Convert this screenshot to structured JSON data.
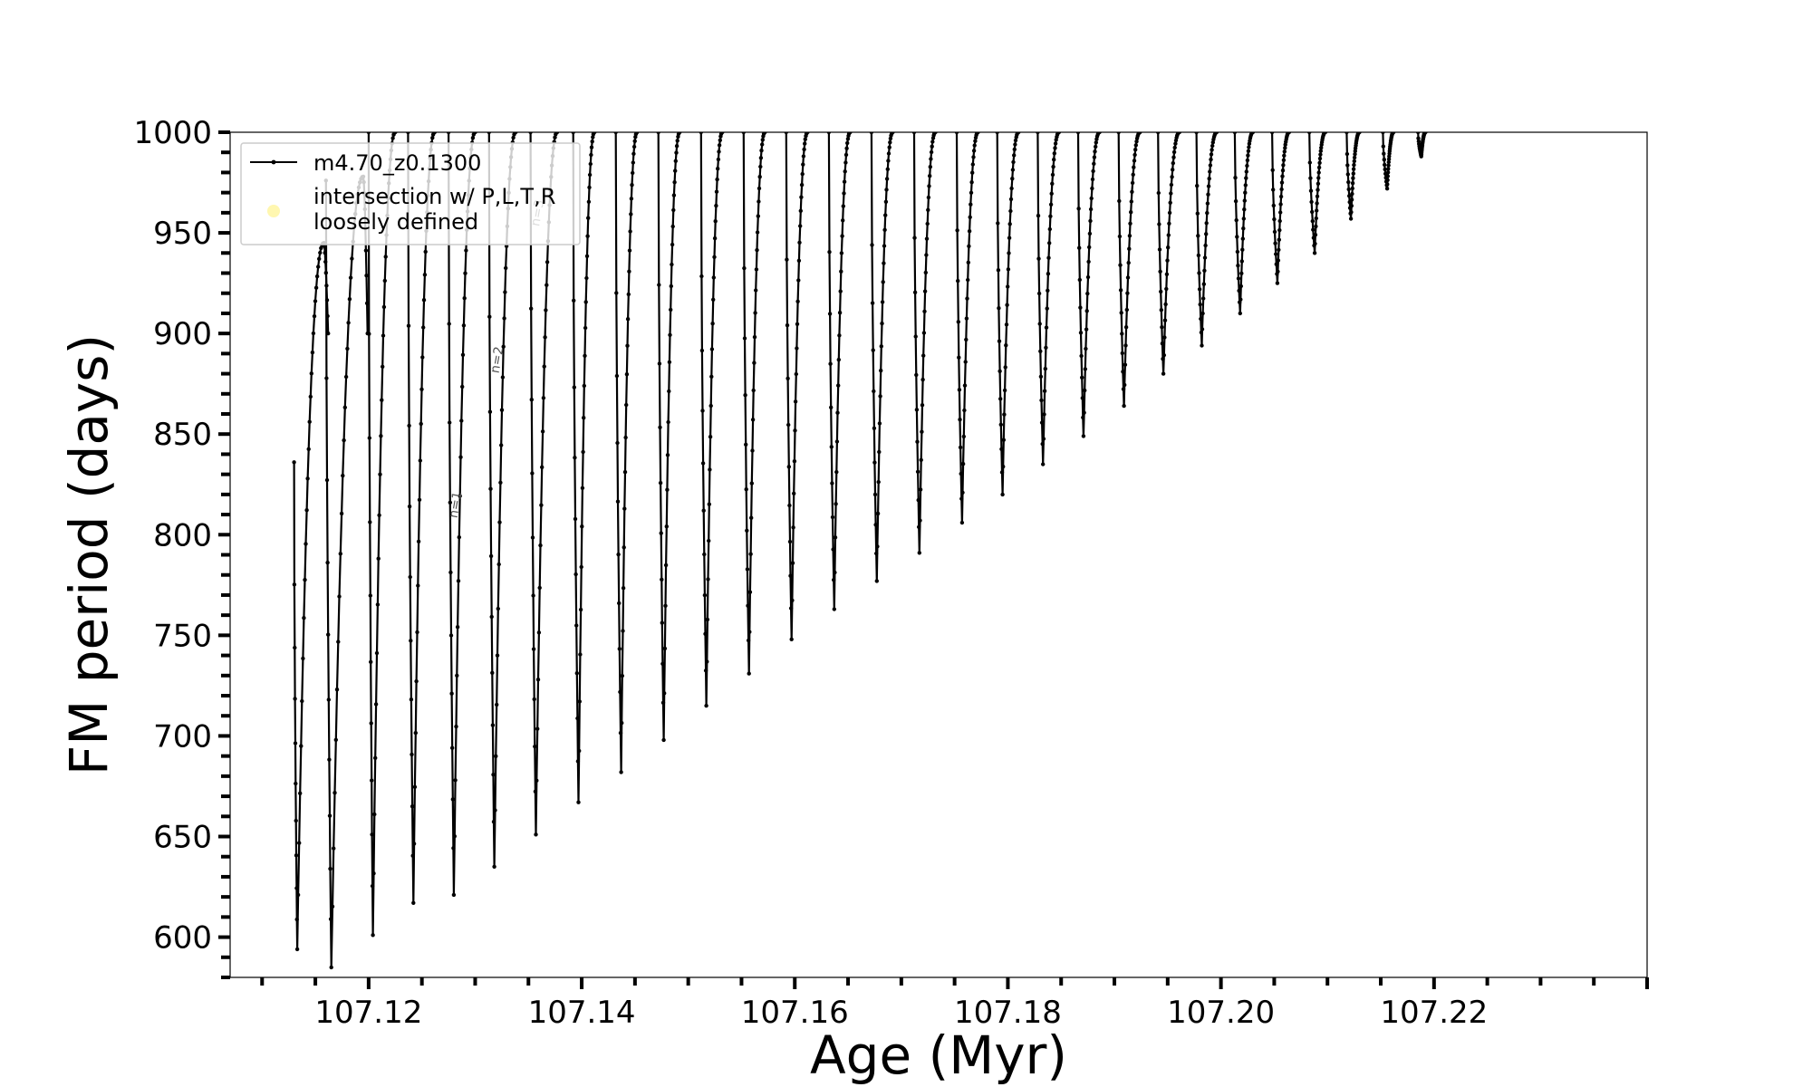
{
  "chart_data": {
    "type": "line",
    "title": "",
    "xlabel": "Age (Myr)",
    "ylabel": "FM period (days)",
    "xlim": [
      107.107,
      107.24
    ],
    "ylim": [
      580,
      1000
    ],
    "x_ticks": [
      107.12,
      107.14,
      107.16,
      107.18,
      107.2,
      107.22
    ],
    "x_tick_labels": [
      "107.12",
      "107.14",
      "107.16",
      "107.18",
      "107.20",
      "107.22"
    ],
    "y_ticks": [
      600,
      650,
      700,
      750,
      800,
      850,
      900,
      950,
      1000
    ],
    "y_tick_labels": [
      "600",
      "650",
      "700",
      "750",
      "800",
      "850",
      "900",
      "950",
      "1000"
    ],
    "grid": false,
    "legend_position": "top-left",
    "series": [
      {
        "name": "m4.70_z0.1300",
        "color": "#000000",
        "marker": "small-dot",
        "description_of_shape": "repeated thermal-pulse loops: period drops sharply to a minimum then rises back above 1000 days",
        "loops": [
          {
            "x_start": 107.113,
            "x_min": 107.1133,
            "y_min": 594,
            "x_top": 107.1158,
            "y_top": 945,
            "y_start": 836
          },
          {
            "x_start": 107.116,
            "x_min": 107.1165,
            "y_min": 585,
            "x_top": 107.1195,
            "y_top": 978,
            "y_start": 976
          },
          {
            "x_start": 107.12,
            "x_min": 107.1204,
            "y_min": 601,
            "x_top": 107.1225,
            "y_top": 1000,
            "y_start": 1000
          },
          {
            "x_start": 107.1237,
            "x_min": 107.1242,
            "y_min": 617,
            "x_top": 107.1262,
            "y_top": 1000,
            "y_start": 1000
          },
          {
            "x_start": 107.1275,
            "x_min": 107.128,
            "y_min": 621,
            "x_top": 107.13,
            "y_top": 1000,
            "y_start": 1000
          },
          {
            "x_start": 107.1313,
            "x_min": 107.1318,
            "y_min": 635,
            "x_top": 107.1338,
            "y_top": 1000,
            "y_start": 1000
          },
          {
            "x_start": 107.1352,
            "x_min": 107.1357,
            "y_min": 651,
            "x_top": 107.1377,
            "y_top": 1000,
            "y_start": 1000
          },
          {
            "x_start": 107.1392,
            "x_min": 107.1397,
            "y_min": 667,
            "x_top": 107.1412,
            "y_top": 1000,
            "y_start": 1000
          },
          {
            "x_start": 107.1432,
            "x_min": 107.1437,
            "y_min": 682,
            "x_top": 107.1452,
            "y_top": 1000,
            "y_start": 1000
          },
          {
            "x_start": 107.1472,
            "x_min": 107.1477,
            "y_min": 698,
            "x_top": 107.1492,
            "y_top": 1000,
            "y_start": 1000
          },
          {
            "x_start": 107.1512,
            "x_min": 107.1517,
            "y_min": 715,
            "x_top": 107.1532,
            "y_top": 1000,
            "y_start": 1000
          },
          {
            "x_start": 107.1552,
            "x_min": 107.1557,
            "y_min": 731,
            "x_top": 107.1572,
            "y_top": 1000,
            "y_start": 1000
          },
          {
            "x_start": 107.1592,
            "x_min": 107.1597,
            "y_min": 748,
            "x_top": 107.1612,
            "y_top": 1000,
            "y_start": 1000
          },
          {
            "x_start": 107.1632,
            "x_min": 107.1637,
            "y_min": 763,
            "x_top": 107.1652,
            "y_top": 1000,
            "y_start": 1000
          },
          {
            "x_start": 107.1672,
            "x_min": 107.1677,
            "y_min": 777,
            "x_top": 107.1692,
            "y_top": 1000,
            "y_start": 1000
          },
          {
            "x_start": 107.1712,
            "x_min": 107.1717,
            "y_min": 791,
            "x_top": 107.1732,
            "y_top": 1000,
            "y_start": 1000
          },
          {
            "x_start": 107.1752,
            "x_min": 107.1757,
            "y_min": 806,
            "x_top": 107.1772,
            "y_top": 1000,
            "y_start": 1000
          },
          {
            "x_start": 107.179,
            "x_min": 107.1795,
            "y_min": 820,
            "x_top": 107.181,
            "y_top": 1000,
            "y_start": 1000
          },
          {
            "x_start": 107.1828,
            "x_min": 107.1833,
            "y_min": 835,
            "x_top": 107.1848,
            "y_top": 1000,
            "y_start": 1000
          },
          {
            "x_start": 107.1866,
            "x_min": 107.1871,
            "y_min": 849,
            "x_top": 107.1886,
            "y_top": 1000,
            "y_start": 1000
          },
          {
            "x_start": 107.1904,
            "x_min": 107.1909,
            "y_min": 864,
            "x_top": 107.1924,
            "y_top": 1000,
            "y_start": 1000
          },
          {
            "x_start": 107.1941,
            "x_min": 107.1946,
            "y_min": 880,
            "x_top": 107.1961,
            "y_top": 1000,
            "y_start": 1000
          },
          {
            "x_start": 107.1977,
            "x_min": 107.1982,
            "y_min": 894,
            "x_top": 107.1996,
            "y_top": 1000,
            "y_start": 1000
          },
          {
            "x_start": 107.2013,
            "x_min": 107.2018,
            "y_min": 910,
            "x_top": 107.203,
            "y_top": 1000,
            "y_start": 1000
          },
          {
            "x_start": 107.2048,
            "x_min": 107.2053,
            "y_min": 925,
            "x_top": 107.2064,
            "y_top": 1000,
            "y_start": 1000
          },
          {
            "x_start": 107.2083,
            "x_min": 107.2088,
            "y_min": 940,
            "x_top": 107.2098,
            "y_top": 1000,
            "y_start": 1000
          },
          {
            "x_start": 107.2118,
            "x_min": 107.2122,
            "y_min": 957,
            "x_top": 107.213,
            "y_top": 1000,
            "y_start": 1000
          },
          {
            "x_start": 107.2152,
            "x_min": 107.2156,
            "y_min": 972,
            "x_top": 107.2162,
            "y_top": 1000,
            "y_start": 1000
          },
          {
            "x_start": 107.2185,
            "x_min": 107.2188,
            "y_min": 988,
            "x_top": 107.2192,
            "y_top": 1000,
            "y_start": 1000
          }
        ]
      },
      {
        "name": "intersection w/ P,L,T,R\nloosely defined",
        "color": "#fff7b0",
        "marker": "circle",
        "values": []
      }
    ],
    "annotations": [
      {
        "text": "n=1",
        "x": 107.1283,
        "y": 808,
        "rotation": -80
      },
      {
        "text": "n=2",
        "x": 107.1322,
        "y": 880,
        "rotation": -80
      },
      {
        "text": "n=3",
        "x": 107.136,
        "y": 953,
        "rotation": -80
      }
    ]
  }
}
